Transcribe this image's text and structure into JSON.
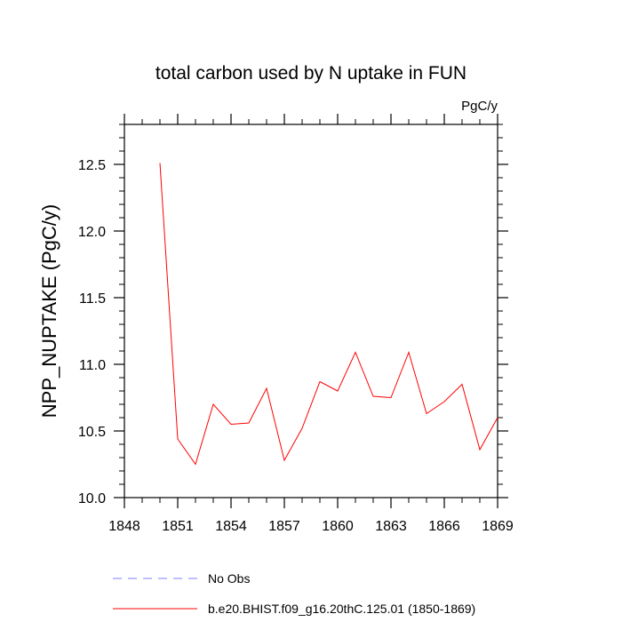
{
  "chart_data": {
    "type": "line",
    "title": "total carbon used by N uptake in FUN",
    "units_label": "PgC/y",
    "xlabel": "",
    "ylabel": "NPP_NUPTAKE  (PgC/y)",
    "xlim": [
      1848,
      1869
    ],
    "ylim": [
      10.0,
      12.8
    ],
    "x_ticks": [
      1848,
      1851,
      1854,
      1857,
      1860,
      1863,
      1866,
      1869
    ],
    "x_tick_labels": [
      "1848",
      "1851",
      "1854",
      "1857",
      "1860",
      "1863",
      "1866",
      "1869"
    ],
    "y_ticks": [
      10.0,
      10.5,
      11.0,
      11.5,
      12.0,
      12.5
    ],
    "y_tick_labels": [
      "10.0",
      "10.5",
      "11.0",
      "11.5",
      "12.0",
      "12.5"
    ],
    "grid": false,
    "legend_position": "bottom",
    "series": [
      {
        "name": "b.e20.BHIST.f09_g16.20thC.125.01 (1850-1869)",
        "color": "#ff0000",
        "style": "solid",
        "x": [
          1850,
          1851,
          1852,
          1853,
          1854,
          1855,
          1856,
          1857,
          1858,
          1859,
          1860,
          1861,
          1862,
          1863,
          1864,
          1865,
          1866,
          1867,
          1868,
          1869
        ],
        "values": [
          12.51,
          10.44,
          10.25,
          10.7,
          10.55,
          10.56,
          10.82,
          10.28,
          10.52,
          10.87,
          10.8,
          11.09,
          10.76,
          10.75,
          11.09,
          10.63,
          10.72,
          10.85,
          10.36,
          10.6
        ]
      }
    ],
    "legend": [
      {
        "label": "No Obs",
        "color": "#7f7fff",
        "style": "dashed"
      },
      {
        "label": "b.e20.BHIST.f09_g16.20thC.125.01 (1850-1869)",
        "color": "#ff0000",
        "style": "solid"
      }
    ]
  }
}
